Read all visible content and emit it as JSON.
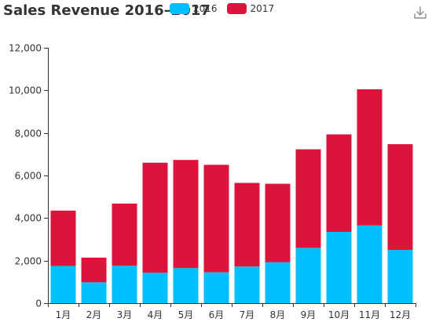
{
  "title": "Sales Revenue 2016–2017",
  "icons": {
    "download": "download-icon"
  },
  "legend": [
    {
      "name": "2016",
      "color": "#00bfff"
    },
    {
      "name": "2017",
      "color": "#dc143c"
    }
  ],
  "chart_data": {
    "type": "bar",
    "stacked": true,
    "title": "Sales Revenue 2016–2017",
    "categories": [
      "1月",
      "2月",
      "3月",
      "4月",
      "5月",
      "6月",
      "7月",
      "8月",
      "9月",
      "10月",
      "11月",
      "12月"
    ],
    "series": [
      {
        "name": "2016",
        "color": "#00bfff",
        "values": [
          1750,
          980,
          1760,
          1430,
          1650,
          1450,
          1720,
          1920,
          2600,
          3350,
          3650,
          2500
        ]
      },
      {
        "name": "2017",
        "color": "#dc143c",
        "values": [
          2600,
          1160,
          2920,
          5170,
          5080,
          5050,
          3930,
          3690,
          4630,
          4580,
          6400,
          4970
        ]
      }
    ],
    "ylim": [
      0,
      12000
    ],
    "yticks": [
      "0",
      "2,000",
      "4,000",
      "6,000",
      "8,000",
      "10,000",
      "12,000"
    ],
    "grid": false,
    "legend_position": "top"
  }
}
